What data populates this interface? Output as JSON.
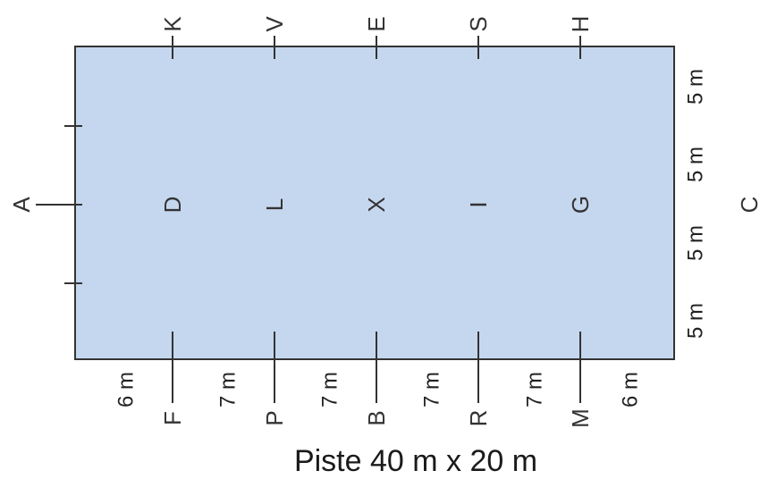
{
  "arena": {
    "caption": "Piste 40 m x 20 m",
    "fill_color": "#c5d7ef",
    "line_color": "#333333",
    "top_letters": [
      "K",
      "V",
      "E",
      "S",
      "H"
    ],
    "centerline_letters": [
      "D",
      "L",
      "X",
      "I",
      "G"
    ],
    "bottom_letters": [
      "F",
      "P",
      "B",
      "R",
      "M"
    ],
    "end_letters": {
      "left": "A",
      "right": "C"
    },
    "bottom_spacing_labels": [
      "6 m",
      "7 m",
      "7 m",
      "7 m",
      "7 m",
      "6 m"
    ],
    "side_spacing_labels": [
      "5 m",
      "5 m",
      "5 m",
      "5 m"
    ]
  }
}
